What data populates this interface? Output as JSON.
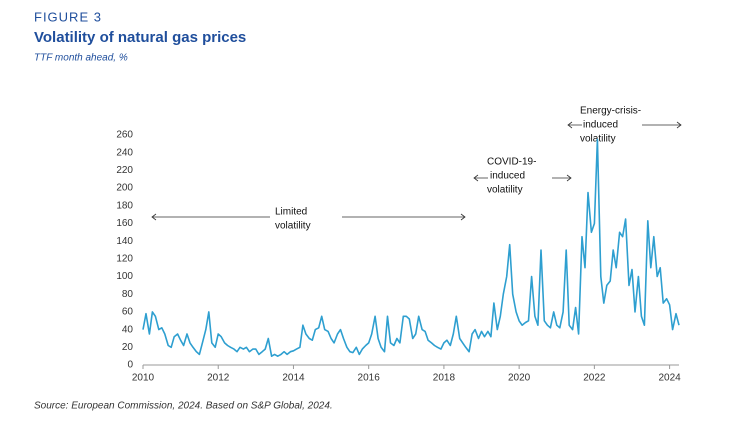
{
  "chart_data": {
    "type": "line",
    "figure_label": "FIGURE 3",
    "title": "Volatility of natural gas prices",
    "subtitle": "TTF month ahead, %",
    "source": "Source: European Commission, 2024. Based on S&P Global, 2024.",
    "annotations": [
      [
        "Limited",
        "volatility"
      ],
      [
        "COVID-19-",
        "induced",
        "volatility"
      ],
      [
        "Energy-crisis-",
        "induced",
        "volatility"
      ]
    ],
    "xlim": [
      2010,
      2024.25
    ],
    "xticks": [
      2010,
      2012,
      2014,
      2016,
      2018,
      2020,
      2022,
      2024
    ],
    "ylim": [
      0,
      260
    ],
    "yticks": [
      0,
      20,
      40,
      60,
      80,
      100,
      120,
      140,
      160,
      180,
      200,
      220,
      240,
      260
    ],
    "x": [
      2010,
      2010.08,
      2010.17,
      2010.25,
      2010.33,
      2010.42,
      2010.5,
      2010.58,
      2010.67,
      2010.75,
      2010.83,
      2010.92,
      2011,
      2011.08,
      2011.17,
      2011.25,
      2011.33,
      2011.42,
      2011.5,
      2011.58,
      2011.67,
      2011.75,
      2011.83,
      2011.92,
      2012,
      2012.08,
      2012.17,
      2012.25,
      2012.33,
      2012.42,
      2012.5,
      2012.58,
      2012.67,
      2012.75,
      2012.83,
      2012.92,
      2013,
      2013.08,
      2013.17,
      2013.25,
      2013.33,
      2013.42,
      2013.5,
      2013.58,
      2013.67,
      2013.75,
      2013.83,
      2013.92,
      2014,
      2014.08,
      2014.17,
      2014.25,
      2014.33,
      2014.42,
      2014.5,
      2014.58,
      2014.67,
      2014.75,
      2014.83,
      2014.92,
      2015,
      2015.08,
      2015.17,
      2015.25,
      2015.33,
      2015.42,
      2015.5,
      2015.58,
      2015.67,
      2015.75,
      2015.83,
      2015.92,
      2016,
      2016.08,
      2016.17,
      2016.25,
      2016.33,
      2016.42,
      2016.5,
      2016.58,
      2016.67,
      2016.75,
      2016.83,
      2016.92,
      2017,
      2017.08,
      2017.17,
      2017.25,
      2017.33,
      2017.42,
      2017.5,
      2017.58,
      2017.67,
      2017.75,
      2017.83,
      2017.92,
      2018,
      2018.08,
      2018.17,
      2018.25,
      2018.33,
      2018.42,
      2018.5,
      2018.58,
      2018.67,
      2018.75,
      2018.83,
      2018.92,
      2019,
      2019.08,
      2019.17,
      2019.25,
      2019.33,
      2019.42,
      2019.5,
      2019.58,
      2019.67,
      2019.75,
      2019.83,
      2019.92,
      2020,
      2020.08,
      2020.17,
      2020.25,
      2020.33,
      2020.42,
      2020.5,
      2020.58,
      2020.67,
      2020.75,
      2020.83,
      2020.92,
      2021,
      2021.08,
      2021.17,
      2021.25,
      2021.33,
      2021.42,
      2021.5,
      2021.58,
      2021.67,
      2021.75,
      2021.83,
      2021.92,
      2022,
      2022.08,
      2022.17,
      2022.25,
      2022.33,
      2022.42,
      2022.5,
      2022.58,
      2022.67,
      2022.75,
      2022.83,
      2022.92,
      2023,
      2023.08,
      2023.17,
      2023.25,
      2023.33,
      2023.42,
      2023.5,
      2023.58,
      2023.67,
      2023.75,
      2023.83,
      2023.92,
      2024,
      2024.08,
      2024.17,
      2024.25
    ],
    "series": [
      {
        "color": "#2e9fd0",
        "values": [
          40,
          58,
          35,
          60,
          55,
          40,
          42,
          35,
          22,
          20,
          32,
          35,
          28,
          22,
          35,
          25,
          20,
          15,
          12,
          25,
          40,
          60,
          25,
          20,
          35,
          32,
          25,
          22,
          20,
          18,
          15,
          20,
          18,
          20,
          15,
          18,
          18,
          12,
          15,
          18,
          30,
          10,
          12,
          10,
          12,
          15,
          12,
          15,
          16,
          18,
          20,
          45,
          35,
          30,
          28,
          40,
          42,
          55,
          40,
          38,
          30,
          25,
          35,
          40,
          30,
          20,
          15,
          14,
          20,
          12,
          18,
          22,
          25,
          35,
          55,
          30,
          20,
          15,
          55,
          25,
          22,
          30,
          25,
          55,
          55,
          52,
          30,
          35,
          55,
          40,
          38,
          28,
          25,
          22,
          20,
          18,
          25,
          28,
          22,
          35,
          55,
          30,
          25,
          20,
          15,
          35,
          40,
          30,
          38,
          32,
          38,
          32,
          70,
          40,
          55,
          80,
          100,
          136,
          80,
          60,
          50,
          45,
          48,
          50,
          100,
          55,
          45,
          130,
          50,
          45,
          42,
          60,
          45,
          42,
          60,
          130,
          45,
          40,
          65,
          35,
          145,
          110,
          195,
          150,
          160,
          255,
          100,
          70,
          90,
          95,
          130,
          110,
          150,
          145,
          165,
          90,
          108,
          60,
          100,
          55,
          45,
          163,
          110,
          145,
          100,
          110,
          70,
          75,
          68,
          40,
          58,
          45
        ]
      }
    ]
  }
}
